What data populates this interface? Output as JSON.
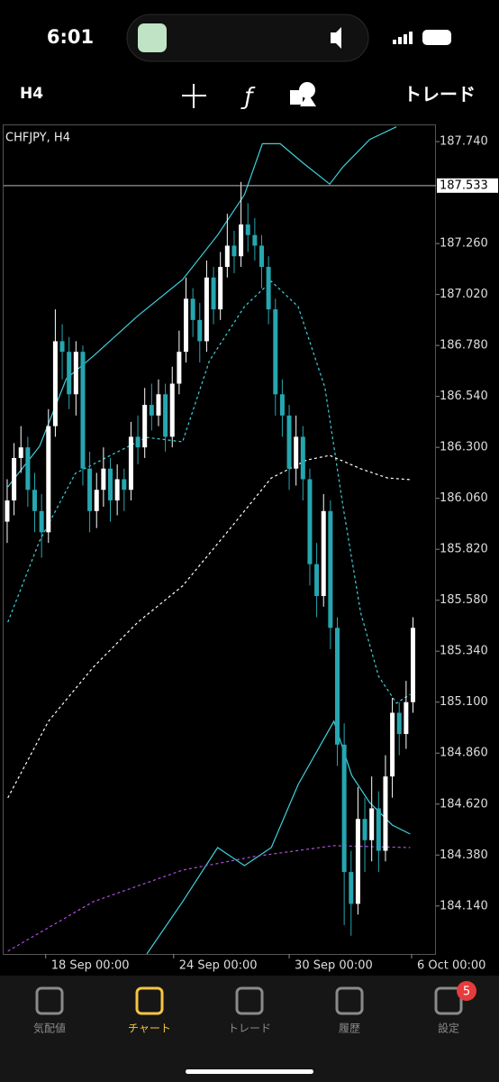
{
  "status_bar": {
    "time": "6:01"
  },
  "toolbar": {
    "timeframe": "H4",
    "trade": "トレード"
  },
  "chart_data": {
    "type": "candlestick",
    "title": "CHFJPY, H4",
    "up_color": "#ffffff",
    "down_color": "#26a6b0",
    "open": [
      185.95,
      186.05,
      186.25,
      186.3,
      186.1,
      186.0,
      185.9,
      186.4,
      186.8,
      186.75,
      186.55,
      186.75,
      186.2,
      186.0,
      186.1,
      186.2,
      186.05,
      186.15,
      186.1,
      186.35,
      186.3,
      186.5,
      186.45,
      186.55,
      186.35,
      186.6,
      186.75,
      187.0,
      186.9,
      186.8,
      187.1,
      186.95,
      187.15,
      187.25,
      187.2,
      187.35,
      187.3,
      187.25,
      187.15,
      186.95,
      186.55,
      186.45,
      186.2,
      186.35,
      186.15,
      185.75,
      185.6,
      186.0,
      185.45,
      184.9,
      184.3,
      184.15,
      184.55,
      184.45,
      184.6,
      184.4,
      184.75,
      185.05,
      184.95,
      185.1
    ],
    "high": [
      186.15,
      186.32,
      186.4,
      186.35,
      186.18,
      186.08,
      186.48,
      186.95,
      186.88,
      186.82,
      186.8,
      186.78,
      186.28,
      186.18,
      186.3,
      186.25,
      186.22,
      186.2,
      186.42,
      186.45,
      186.58,
      186.6,
      186.62,
      186.6,
      186.68,
      186.85,
      187.1,
      187.05,
      186.98,
      187.18,
      187.15,
      187.22,
      187.4,
      187.32,
      187.55,
      187.45,
      187.38,
      187.3,
      187.2,
      187.0,
      186.62,
      186.5,
      186.45,
      186.4,
      186.2,
      185.85,
      186.08,
      186.05,
      185.5,
      185.0,
      184.4,
      184.7,
      184.65,
      184.75,
      184.68,
      184.85,
      185.12,
      185.1,
      185.2,
      185.5
    ],
    "low": [
      185.85,
      185.98,
      186.18,
      186.02,
      185.9,
      185.78,
      185.85,
      186.35,
      186.62,
      186.48,
      186.45,
      186.12,
      185.9,
      185.92,
      186.02,
      185.95,
      185.98,
      186.0,
      186.05,
      186.22,
      186.25,
      186.38,
      186.4,
      186.28,
      186.3,
      186.55,
      186.7,
      186.82,
      186.7,
      186.75,
      186.88,
      186.9,
      187.1,
      187.12,
      187.15,
      187.22,
      187.18,
      187.05,
      186.88,
      186.45,
      186.35,
      186.1,
      186.12,
      186.05,
      185.65,
      185.5,
      185.55,
      185.35,
      184.8,
      184.05,
      184.0,
      184.1,
      184.3,
      184.35,
      184.3,
      184.35,
      184.65,
      184.85,
      184.88,
      185.05
    ],
    "close": [
      186.05,
      186.25,
      186.3,
      186.1,
      186.0,
      185.9,
      186.4,
      186.8,
      186.75,
      186.55,
      186.75,
      186.2,
      186.0,
      186.1,
      186.2,
      186.05,
      186.15,
      186.1,
      186.35,
      186.3,
      186.5,
      186.45,
      186.55,
      186.35,
      186.6,
      186.75,
      187.0,
      186.9,
      186.8,
      187.1,
      186.95,
      187.15,
      187.25,
      187.2,
      187.35,
      187.3,
      187.25,
      187.15,
      186.95,
      186.55,
      186.45,
      186.2,
      186.35,
      186.15,
      185.75,
      185.6,
      186.0,
      185.45,
      184.9,
      184.3,
      184.15,
      184.55,
      184.45,
      184.6,
      184.4,
      184.75,
      185.05,
      184.95,
      185.1,
      185.45
    ],
    "series": [
      {
        "color": "#3fd0dc",
        "style": "solid",
        "x": [
          0.1,
          4.7,
          8.6,
          12.5,
          19,
          25.5,
          30.6,
          34.5,
          37.1,
          39.7,
          43,
          46.9,
          48.8,
          52.7,
          56.6
        ],
        "values": [
          186.114,
          186.305,
          186.623,
          186.729,
          186.92,
          187.09,
          187.3,
          187.49,
          187.73,
          187.73,
          187.64,
          187.54,
          187.62,
          187.75,
          187.81
        ]
      },
      {
        "color": "#3fd0dc",
        "style": "dashed",
        "x": [
          0.1,
          4.7,
          9.9,
          15,
          20.3,
          25.5,
          29.4,
          34.5,
          38.4,
          42.3,
          46.2,
          48.8,
          51.4,
          54,
          56.6,
          58.6
        ],
        "values": [
          185.477,
          185.859,
          186.177,
          186.262,
          186.347,
          186.326,
          186.708,
          186.963,
          187.082,
          186.963,
          186.581,
          186.029,
          185.52,
          185.222,
          185.095,
          185.137
        ]
      },
      {
        "color": "#ffffff",
        "style": "dashed",
        "x": [
          0.1,
          6,
          12.5,
          19,
          25.5,
          32,
          38.4,
          43.6,
          46.9,
          51.4,
          55.3,
          58.6
        ],
        "values": [
          184.649,
          185.01,
          185.264,
          185.477,
          185.647,
          185.901,
          186.156,
          186.241,
          186.262,
          186.199,
          186.156,
          186.148
        ]
      },
      {
        "color": "#3fd0dc",
        "style": "solid",
        "x": [
          20.3,
          25.5,
          30.6,
          34.5,
          38.4,
          42.3,
          47.5,
          50.1,
          52.7,
          56,
          58.6
        ],
        "values": [
          183.914,
          184.16,
          184.415,
          184.33,
          184.415,
          184.712,
          185.01,
          184.755,
          184.627,
          184.521,
          184.479
        ]
      },
      {
        "color": "#b050e0",
        "style": "dashed",
        "x": [
          0.1,
          12.5,
          25.5,
          35.9,
          47.5,
          58.6
        ],
        "values": [
          183.927,
          184.16,
          184.309,
          184.373,
          184.424,
          184.415
        ]
      }
    ],
    "current_price": 187.533,
    "ylim": [
      183.914,
      187.821
    ],
    "yticks": [
      {
        "value": 187.74,
        "label": "187.740"
      },
      {
        "value": 187.26,
        "label": "187.260"
      },
      {
        "value": 187.02,
        "label": "187.020"
      },
      {
        "value": 186.78,
        "label": "186.780"
      },
      {
        "value": 186.54,
        "label": "186.540"
      },
      {
        "value": 186.3,
        "label": "186.300"
      },
      {
        "value": 186.06,
        "label": "186.060"
      },
      {
        "value": 185.82,
        "label": "185.820"
      },
      {
        "value": 185.58,
        "label": "185.580"
      },
      {
        "value": 185.34,
        "label": "185.340"
      },
      {
        "value": 185.1,
        "label": "185.100"
      },
      {
        "value": 184.86,
        "label": "184.860"
      },
      {
        "value": 184.62,
        "label": "184.620"
      },
      {
        "value": 184.38,
        "label": "184.380"
      },
      {
        "value": 184.14,
        "label": "184.140"
      }
    ],
    "xlim": [
      -0.52,
      62.34
    ],
    "xticks": [
      {
        "value": 5.6,
        "label": "18 Sep 00:00"
      },
      {
        "value": 24.2,
        "label": "24 Sep 00:00"
      },
      {
        "value": 41,
        "label": "30 Sep 00:00"
      },
      {
        "value": 58.8,
        "label": "6 Oct 00:00"
      }
    ]
  },
  "tab_bar": {
    "tabs": [
      "気配値",
      "チャート",
      "トレード",
      "履歴",
      "設定"
    ],
    "active": 1,
    "badge": 5
  }
}
